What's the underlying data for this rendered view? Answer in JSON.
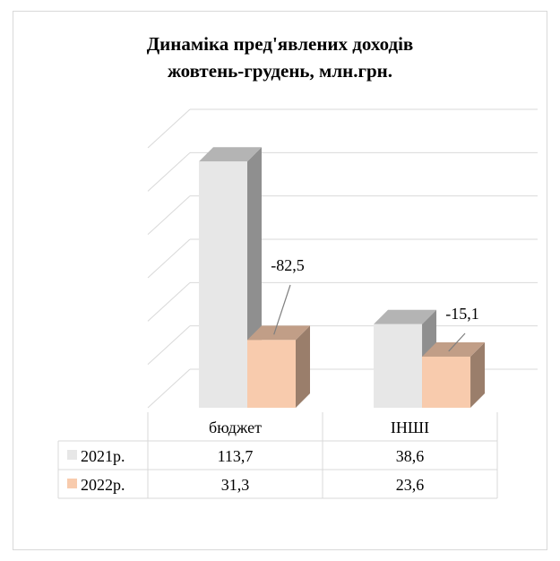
{
  "chart_data": {
    "type": "bar",
    "title_lines": [
      "Динаміка пред'явлених доходів",
      "жовтень-грудень, млн.грн."
    ],
    "categories": [
      "бюджет",
      "ІНШІ"
    ],
    "series": [
      {
        "name": "2021р.",
        "values": [
          113.7,
          38.6
        ],
        "display": [
          "113,7",
          "38,6"
        ],
        "color": "#e7e7e7"
      },
      {
        "name": "2022р.",
        "values": [
          31.3,
          23.6
        ],
        "display": [
          "31,3",
          "23,6"
        ],
        "color": "#f8cbad"
      }
    ],
    "annotations": [
      "-82,5",
      "-15,1"
    ],
    "ylim": [
      0,
      120
    ],
    "grid": true,
    "data_table": true,
    "style": "3d-clustered-column"
  }
}
